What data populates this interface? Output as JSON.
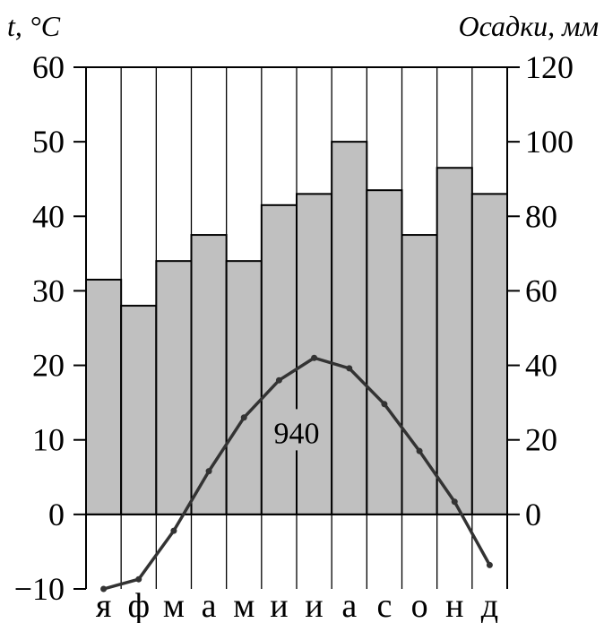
{
  "chart_data": {
    "type": "bar+line",
    "title": "",
    "total_annotation": "940",
    "categories": [
      "я",
      "ф",
      "м",
      "а",
      "м",
      "и",
      "и",
      "а",
      "с",
      "о",
      "н",
      "д"
    ],
    "left_axis": {
      "label": "t, °C",
      "ticks": [
        "60",
        "50",
        "40",
        "30",
        "20",
        "10",
        "0",
        "−10"
      ],
      "ylim": [
        -10,
        60
      ]
    },
    "right_axis": {
      "label": "Осадки, мм",
      "ticks": [
        "120",
        "100",
        "80",
        "60",
        "40",
        "20",
        "0"
      ],
      "ylim": [
        -20,
        120
      ]
    },
    "series": [
      {
        "kind": "bar",
        "axis": "right",
        "values": [
          63,
          56,
          68,
          75,
          68,
          83,
          86,
          100,
          87,
          75,
          93,
          86
        ],
        "color": "#c0c0c0"
      },
      {
        "kind": "line",
        "axis": "left",
        "values": [
          -10,
          -8.7,
          -2.2,
          5.8,
          13,
          18,
          21,
          19.6,
          14.8,
          8.5,
          1.7,
          -6.8
        ],
        "color": "#333333"
      }
    ],
    "grid": "vertical"
  }
}
